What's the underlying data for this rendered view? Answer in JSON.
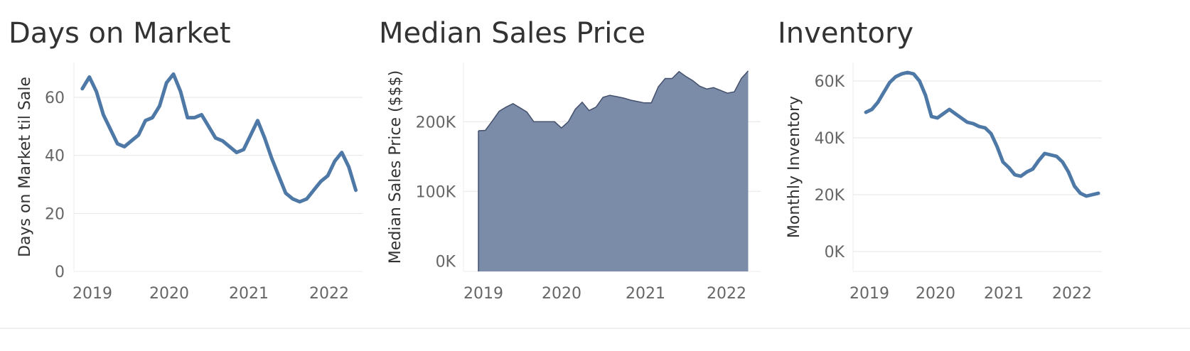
{
  "colors": {
    "line": "#4e79a7",
    "area_fill": "#7b8ca8",
    "area_stroke": "#44506c",
    "text": "#333333",
    "tick": "#666666",
    "grid": "#e6e6e6"
  },
  "chart_data": [
    {
      "type": "line",
      "title": "Days on Market",
      "ylabel": "Days on Market til Sale",
      "xlabel": "",
      "x_ticks": [
        "2019",
        "2020",
        "2021",
        "2022"
      ],
      "y_ticks": [
        "0",
        "20",
        "40",
        "60"
      ],
      "y_tick_values": [
        0,
        20,
        40,
        60
      ],
      "ylim": [
        0,
        72
      ],
      "xlim": [
        2018.9,
        2022.33
      ],
      "grid": true,
      "series": [
        {
          "x": [
            2019.0,
            2019.083,
            2019.167,
            2019.25,
            2019.333,
            2019.417,
            2019.5,
            2019.583,
            2019.667,
            2019.75,
            2019.833,
            2019.917,
            2020.0,
            2020.083,
            2020.167,
            2020.25,
            2020.333,
            2020.417,
            2020.5,
            2020.583,
            2020.667,
            2020.75,
            2020.833,
            2020.917,
            2021.0,
            2021.083,
            2021.167,
            2021.25,
            2021.333,
            2021.417,
            2021.5,
            2021.583,
            2021.667,
            2021.75,
            2021.833,
            2021.917,
            2022.0,
            2022.083,
            2022.167,
            2022.25
          ],
          "y": [
            63,
            67,
            62,
            54,
            49,
            44,
            43,
            45,
            47,
            52,
            53,
            57,
            65,
            68,
            62,
            53,
            53,
            54,
            50,
            46,
            45,
            43,
            41,
            42,
            47,
            52,
            46,
            39,
            33,
            27,
            25,
            24,
            25,
            28,
            31,
            33,
            38,
            41,
            36,
            28
          ]
        }
      ]
    },
    {
      "type": "area",
      "title": "Median Sales Price",
      "ylabel": "Median Sales Price ($$$)",
      "xlabel": "",
      "x_ticks": [
        "2019",
        "2020",
        "2021",
        "2022"
      ],
      "y_ticks": [
        "0K",
        "100K",
        "200K"
      ],
      "y_tick_values": [
        0,
        100000,
        200000
      ],
      "ylim": [
        -15000,
        285000
      ],
      "xlim": [
        2018.82,
        2022.4
      ],
      "grid": true,
      "series": [
        {
          "x": [
            2019.0,
            2019.083,
            2019.167,
            2019.25,
            2019.333,
            2019.417,
            2019.5,
            2019.583,
            2019.667,
            2019.75,
            2019.833,
            2019.917,
            2020.0,
            2020.083,
            2020.167,
            2020.25,
            2020.333,
            2020.417,
            2020.5,
            2020.583,
            2020.667,
            2020.75,
            2020.833,
            2020.917,
            2021.0,
            2021.083,
            2021.167,
            2021.25,
            2021.333,
            2021.417,
            2021.5,
            2021.583,
            2021.667,
            2021.75,
            2021.833,
            2021.917,
            2022.0,
            2022.083,
            2022.167,
            2022.25
          ],
          "y": [
            187000,
            187500,
            201000,
            215000,
            221000,
            226000,
            220000,
            214000,
            200000,
            200000,
            200000,
            200000,
            191000,
            200000,
            218000,
            228000,
            216000,
            221000,
            235000,
            238000,
            236000,
            234000,
            231000,
            229000,
            227000,
            227000,
            250000,
            262000,
            262000,
            272000,
            265000,
            259000,
            251000,
            247000,
            249000,
            245000,
            241000,
            243000,
            262000,
            273000
          ]
        }
      ]
    },
    {
      "type": "line",
      "title": "Inventory",
      "ylabel": "Monthly Inventory",
      "xlabel": "",
      "x_ticks": [
        "2019",
        "2020",
        "2021",
        "2022"
      ],
      "y_ticks": [
        "0K",
        "20K",
        "40K",
        "60K"
      ],
      "y_tick_values": [
        0,
        20000,
        40000,
        60000
      ],
      "ylim": [
        -7000,
        66500
      ],
      "xlim": [
        2018.82,
        2022.3
      ],
      "grid": true,
      "series": [
        {
          "x": [
            2019.0,
            2019.083,
            2019.167,
            2019.25,
            2019.333,
            2019.417,
            2019.5,
            2019.583,
            2019.667,
            2019.75,
            2019.833,
            2019.917,
            2020.0,
            2020.083,
            2020.167,
            2020.25,
            2020.333,
            2020.417,
            2020.5,
            2020.583,
            2020.667,
            2020.75,
            2020.833,
            2020.917,
            2021.0,
            2021.083,
            2021.167,
            2021.25,
            2021.333,
            2021.417,
            2021.5,
            2021.583,
            2021.667,
            2021.75,
            2021.833,
            2021.917,
            2022.0,
            2022.083,
            2022.167,
            2022.25
          ],
          "y": [
            49000,
            50000,
            52500,
            56000,
            59500,
            61500,
            62500,
            63000,
            62500,
            60000,
            55000,
            47500,
            47000,
            48500,
            50000,
            48500,
            47000,
            45500,
            45000,
            44000,
            43500,
            41500,
            37000,
            31500,
            29500,
            27000,
            26500,
            28000,
            29000,
            32000,
            34500,
            34000,
            33500,
            31500,
            28000,
            23000,
            20500,
            19500,
            20000,
            20500
          ]
        }
      ]
    }
  ]
}
